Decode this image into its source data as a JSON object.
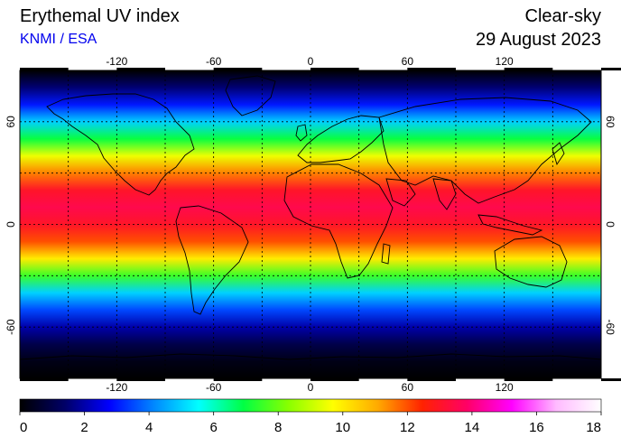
{
  "header": {
    "title": "Erythemal UV index",
    "source": "KNMI / ESA",
    "condition": "Clear-sky",
    "date": "29 August 2023"
  },
  "map": {
    "projection": "equirectangular",
    "lon_range": [
      -180,
      180
    ],
    "lat_range": [
      -90,
      90
    ],
    "lon_tick_labels": [
      "-120",
      "-60",
      "0",
      "60",
      "120"
    ],
    "lat_tick_labels": [
      "60",
      "0",
      "-60"
    ],
    "lon_ticks": [
      -120,
      -60,
      0,
      60,
      120
    ],
    "lat_ticks": [
      60,
      0,
      -60
    ],
    "gridlines": "dashed every 30 degrees",
    "uv_profile_by_latitude": [
      {
        "lat": 90,
        "uv": 0
      },
      {
        "lat": 80,
        "uv": 1.5
      },
      {
        "lat": 70,
        "uv": 3
      },
      {
        "lat": 60,
        "uv": 5
      },
      {
        "lat": 50,
        "uv": 7
      },
      {
        "lat": 40,
        "uv": 9.5
      },
      {
        "lat": 30,
        "uv": 11.5
      },
      {
        "lat": 20,
        "uv": 13
      },
      {
        "lat": 10,
        "uv": 13.5
      },
      {
        "lat": 0,
        "uv": 13
      },
      {
        "lat": -10,
        "uv": 12
      },
      {
        "lat": -20,
        "uv": 10
      },
      {
        "lat": -30,
        "uv": 7.5
      },
      {
        "lat": -40,
        "uv": 5
      },
      {
        "lat": -50,
        "uv": 3.5
      },
      {
        "lat": -60,
        "uv": 2
      },
      {
        "lat": -70,
        "uv": 1
      },
      {
        "lat": -80,
        "uv": 0.3
      },
      {
        "lat": -90,
        "uv": 0
      }
    ]
  },
  "colorbar": {
    "min": 0,
    "max": 18,
    "tick_labels": [
      "0",
      "2",
      "4",
      "6",
      "8",
      "10",
      "12",
      "14",
      "16",
      "18"
    ],
    "colors": [
      "#000000",
      "#000066",
      "#0000ff",
      "#0088ff",
      "#00ffff",
      "#00ff44",
      "#88ff00",
      "#ffff00",
      "#ffaa00",
      "#ff2200",
      "#ff0066",
      "#ff00ff",
      "#ffbbff",
      "#ffffff"
    ]
  }
}
